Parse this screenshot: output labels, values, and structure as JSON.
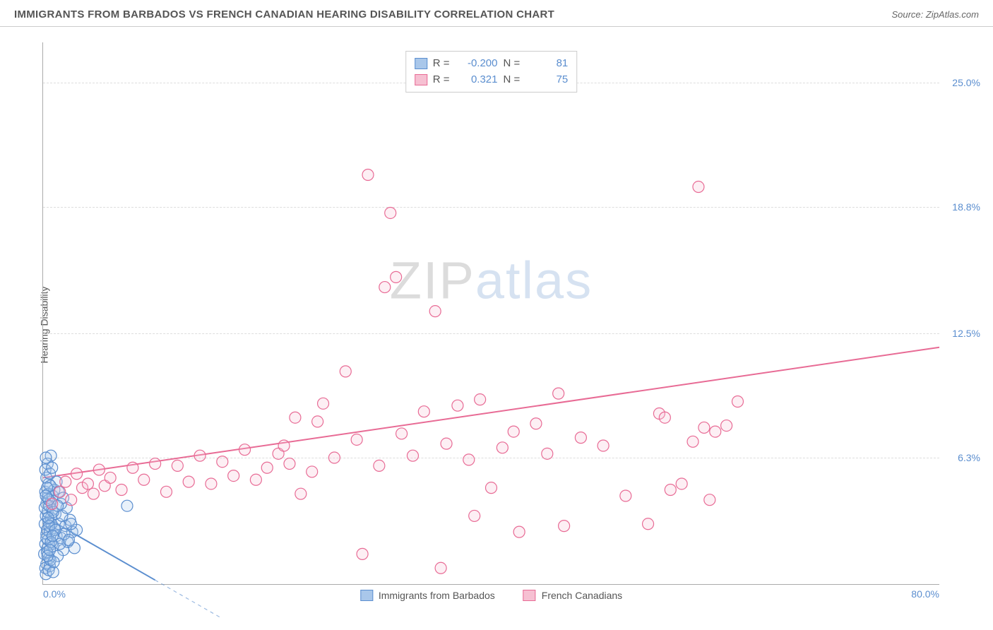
{
  "header": {
    "title": "IMMIGRANTS FROM BARBADOS VS FRENCH CANADIAN HEARING DISABILITY CORRELATION CHART",
    "source_prefix": "Source: ",
    "source": "ZipAtlas.com"
  },
  "watermark": {
    "zip": "ZIP",
    "atlas": "atlas"
  },
  "chart": {
    "type": "scatter",
    "ylabel": "Hearing Disability",
    "xlim": [
      0,
      80
    ],
    "ylim": [
      0,
      27
    ],
    "xticks": [
      {
        "v": 0,
        "label": "0.0%"
      },
      {
        "v": 80,
        "label": "80.0%"
      }
    ],
    "yticks": [
      {
        "v": 6.3,
        "label": "6.3%"
      },
      {
        "v": 12.5,
        "label": "12.5%"
      },
      {
        "v": 18.8,
        "label": "18.8%"
      },
      {
        "v": 25.0,
        "label": "25.0%"
      }
    ],
    "grid_color": "#dddddd",
    "background_color": "#ffffff",
    "marker_radius": 8,
    "marker_stroke_width": 1.2,
    "marker_fill_opacity": 0.25,
    "series": [
      {
        "name": "Immigrants from Barbados",
        "color_stroke": "#5b8ecf",
        "color_fill": "#a9c7ea",
        "R": "-0.200",
        "N": "81",
        "trend": {
          "x1": 0,
          "y1": 3.4,
          "x2": 10,
          "y2": 0.2,
          "dash_extend_to_x": 16
        },
        "points": [
          [
            0.1,
            1.5
          ],
          [
            0.2,
            2.0
          ],
          [
            0.3,
            2.5
          ],
          [
            0.15,
            3.0
          ],
          [
            0.25,
            3.4
          ],
          [
            0.3,
            1.0
          ],
          [
            0.4,
            1.8
          ],
          [
            0.35,
            2.7
          ],
          [
            0.2,
            0.8
          ],
          [
            0.45,
            2.2
          ],
          [
            0.5,
            3.1
          ],
          [
            0.55,
            1.3
          ],
          [
            0.6,
            2.6
          ],
          [
            0.3,
            4.0
          ],
          [
            0.7,
            3.3
          ],
          [
            0.4,
            4.3
          ],
          [
            0.2,
            4.6
          ],
          [
            0.8,
            2.0
          ],
          [
            0.25,
            0.5
          ],
          [
            0.9,
            1.9
          ],
          [
            1.0,
            2.8
          ],
          [
            0.4,
            3.6
          ],
          [
            0.6,
            0.9
          ],
          [
            0.15,
            3.8
          ],
          [
            1.2,
            2.4
          ],
          [
            0.7,
            4.1
          ],
          [
            0.5,
            0.7
          ],
          [
            1.4,
            3.0
          ],
          [
            0.35,
            1.6
          ],
          [
            1.6,
            2.3
          ],
          [
            0.8,
            3.7
          ],
          [
            0.5,
            5.0
          ],
          [
            1.8,
            1.7
          ],
          [
            0.3,
            5.3
          ],
          [
            0.9,
            0.6
          ],
          [
            2.0,
            2.9
          ],
          [
            0.45,
            4.5
          ],
          [
            1.1,
            3.5
          ],
          [
            0.65,
            1.2
          ],
          [
            2.2,
            2.1
          ],
          [
            0.7,
            6.4
          ],
          [
            0.55,
            3.9
          ],
          [
            1.3,
            1.4
          ],
          [
            2.4,
            3.2
          ],
          [
            0.4,
            6.0
          ],
          [
            0.2,
            5.7
          ],
          [
            1.5,
            2.0
          ],
          [
            0.85,
            4.4
          ],
          [
            2.6,
            2.6
          ],
          [
            0.6,
            5.5
          ],
          [
            1.0,
            4.7
          ],
          [
            0.25,
            6.3
          ],
          [
            1.7,
            3.4
          ],
          [
            2.8,
            1.8
          ],
          [
            0.75,
            3.0
          ],
          [
            1.9,
            2.5
          ],
          [
            0.95,
            1.1
          ],
          [
            3.0,
            2.7
          ],
          [
            0.5,
            4.2
          ],
          [
            1.2,
            5.1
          ],
          [
            0.3,
            2.3
          ],
          [
            2.1,
            3.8
          ],
          [
            0.65,
            4.9
          ],
          [
            0.4,
            1.4
          ],
          [
            1.4,
            4.6
          ],
          [
            2.3,
            2.2
          ],
          [
            0.8,
            5.8
          ],
          [
            0.55,
            2.9
          ],
          [
            1.6,
            4.0
          ],
          [
            0.9,
            3.6
          ],
          [
            2.5,
            3.0
          ],
          [
            0.35,
            4.8
          ],
          [
            1.1,
            2.7
          ],
          [
            0.7,
            2.1
          ],
          [
            1.8,
            4.3
          ],
          [
            0.45,
            3.3
          ],
          [
            0.6,
            1.7
          ],
          [
            1.3,
            3.9
          ],
          [
            0.25,
            4.4
          ],
          [
            0.85,
            2.4
          ],
          [
            7.5,
            3.9
          ]
        ]
      },
      {
        "name": "French Canadians",
        "color_stroke": "#e86b95",
        "color_fill": "#f6c0d2",
        "R": "0.321",
        "N": "75",
        "trend": {
          "x1": 0,
          "y1": 5.3,
          "x2": 80,
          "y2": 11.8
        },
        "points": [
          [
            0.8,
            4.0
          ],
          [
            1.5,
            4.6
          ],
          [
            2.0,
            5.1
          ],
          [
            2.5,
            4.2
          ],
          [
            3.0,
            5.5
          ],
          [
            3.5,
            4.8
          ],
          [
            4.0,
            5.0
          ],
          [
            4.5,
            4.5
          ],
          [
            5.0,
            5.7
          ],
          [
            5.5,
            4.9
          ],
          [
            6.0,
            5.3
          ],
          [
            7.0,
            4.7
          ],
          [
            8.0,
            5.8
          ],
          [
            9.0,
            5.2
          ],
          [
            10.0,
            6.0
          ],
          [
            11.0,
            4.6
          ],
          [
            12.0,
            5.9
          ],
          [
            13.0,
            5.1
          ],
          [
            14.0,
            6.4
          ],
          [
            15.0,
            5.0
          ],
          [
            16.0,
            6.1
          ],
          [
            17.0,
            5.4
          ],
          [
            18.0,
            6.7
          ],
          [
            19.0,
            5.2
          ],
          [
            20.0,
            5.8
          ],
          [
            21.0,
            6.5
          ],
          [
            22.0,
            6.0
          ],
          [
            23.0,
            4.5
          ],
          [
            24.0,
            5.6
          ],
          [
            21.5,
            6.9
          ],
          [
            22.5,
            8.3
          ],
          [
            24.5,
            8.1
          ],
          [
            25.0,
            9.0
          ],
          [
            26.0,
            6.3
          ],
          [
            27.0,
            10.6
          ],
          [
            28.0,
            7.2
          ],
          [
            29.0,
            20.4
          ],
          [
            30.0,
            5.9
          ],
          [
            28.5,
            1.5
          ],
          [
            30.5,
            14.8
          ],
          [
            31.0,
            18.5
          ],
          [
            31.5,
            15.3
          ],
          [
            32.0,
            7.5
          ],
          [
            33.0,
            6.4
          ],
          [
            34.0,
            8.6
          ],
          [
            35.0,
            13.6
          ],
          [
            36.0,
            7.0
          ],
          [
            37.0,
            8.9
          ],
          [
            38.0,
            6.2
          ],
          [
            39.0,
            9.2
          ],
          [
            40.0,
            4.8
          ],
          [
            41.0,
            6.8
          ],
          [
            42.0,
            7.6
          ],
          [
            35.5,
            0.8
          ],
          [
            44.0,
            8.0
          ],
          [
            45.0,
            6.5
          ],
          [
            46.0,
            9.5
          ],
          [
            48.0,
            7.3
          ],
          [
            50.0,
            6.9
          ],
          [
            52.0,
            4.4
          ],
          [
            55.0,
            8.5
          ],
          [
            58.0,
            7.1
          ],
          [
            38.5,
            3.4
          ],
          [
            42.5,
            2.6
          ],
          [
            59.0,
            7.8
          ],
          [
            46.5,
            2.9
          ],
          [
            55.5,
            8.3
          ],
          [
            57.0,
            5.0
          ],
          [
            60.0,
            7.6
          ],
          [
            62.0,
            9.1
          ],
          [
            58.5,
            19.8
          ],
          [
            56.0,
            4.7
          ],
          [
            54.0,
            3.0
          ],
          [
            59.5,
            4.2
          ],
          [
            61.0,
            7.9
          ]
        ]
      }
    ],
    "legend_top_label_R": "R  = ",
    "legend_top_label_N": "N  = "
  }
}
